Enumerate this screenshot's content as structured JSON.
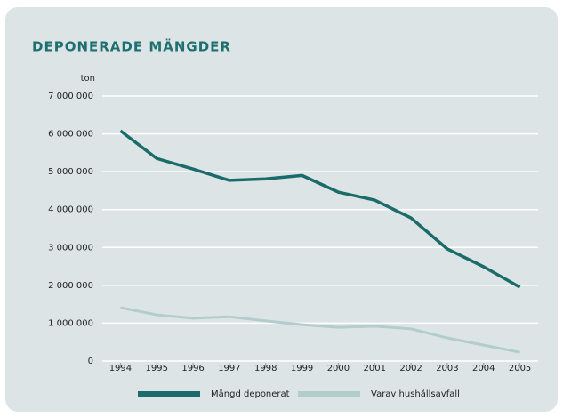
{
  "chart_data": {
    "type": "line",
    "title": "DEPONERADE MÄNGDER",
    "y_label": "ton",
    "x": [
      1994,
      1995,
      1996,
      1997,
      1998,
      1999,
      2000,
      2001,
      2002,
      2003,
      2004,
      2005
    ],
    "xlim": [
      1993.5,
      2005.5
    ],
    "xticks": [
      1994,
      1995,
      1996,
      1997,
      1998,
      1999,
      2000,
      2001,
      2002,
      2003,
      2004,
      2005
    ],
    "ylim": [
      0,
      7000000
    ],
    "yticks": [
      0,
      {
        "value": 1000000,
        "label": "1 000 000"
      },
      {
        "value": 2000000,
        "label": "2 000 000"
      },
      {
        "value": 3000000,
        "label": "3 000 000"
      },
      {
        "value": 4000000,
        "label": "4 000 000"
      },
      {
        "value": 5000000,
        "label": "5 000 000"
      },
      {
        "value": 6000000,
        "label": "6 000 000"
      },
      {
        "value": 7000000,
        "label": "7 000 000"
      }
    ],
    "grid": true,
    "series": [
      {
        "name": "Mängd deponerat",
        "color": "#1c6b6b",
        "values": [
          6080000,
          5350000,
          5070000,
          4770000,
          4810000,
          4900000,
          4460000,
          4250000,
          3780000,
          2960000,
          2490000,
          1950000
        ]
      },
      {
        "name": "Varav hushållsavfall",
        "color": "#b3cccc",
        "values": [
          1410000,
          1220000,
          1130000,
          1170000,
          1060000,
          960000,
          890000,
          920000,
          850000,
          610000,
          420000,
          230000
        ]
      }
    ]
  }
}
